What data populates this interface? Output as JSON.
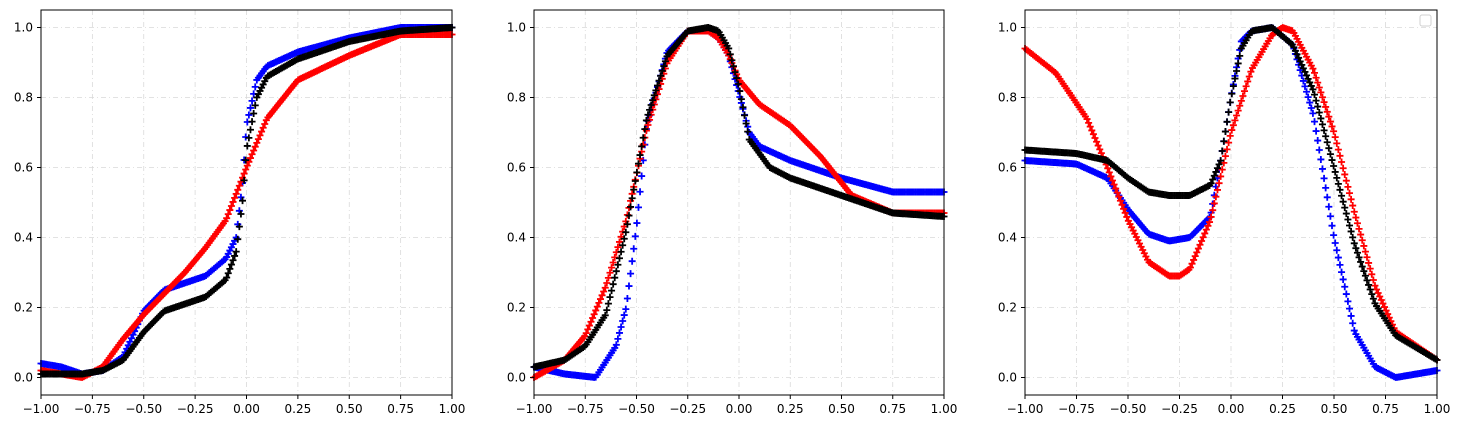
{
  "chart_data": [
    {
      "type": "scatter",
      "xlim": [
        -1.0,
        1.0
      ],
      "ylim": [
        -0.05,
        1.05
      ],
      "xticks": [
        -1.0,
        -0.75,
        -0.5,
        -0.25,
        0.0,
        0.25,
        0.5,
        0.75,
        1.0
      ],
      "xtick_labels": [
        "−1.00",
        "−0.75",
        "−0.50",
        "−0.25",
        "0.00",
        "0.25",
        "0.50",
        "0.75",
        "1.00"
      ],
      "yticks": [
        0.0,
        0.2,
        0.4,
        0.6,
        0.8,
        1.0
      ],
      "ytick_labels": [
        "0.0",
        "0.2",
        "0.4",
        "0.6",
        "0.8",
        "1.0"
      ],
      "grid": true,
      "legend": false,
      "marker": "+",
      "series": [
        {
          "color": "#0000ff",
          "x": [
            -1.0,
            -0.9,
            -0.8,
            -0.7,
            -0.6,
            -0.5,
            -0.4,
            -0.3,
            -0.2,
            -0.1,
            -0.05,
            -0.02,
            0.0,
            0.05,
            0.1,
            0.25,
            0.5,
            0.75,
            1.0
          ],
          "y": [
            0.04,
            0.03,
            0.01,
            0.02,
            0.06,
            0.19,
            0.25,
            0.27,
            0.29,
            0.34,
            0.4,
            0.55,
            0.72,
            0.85,
            0.89,
            0.93,
            0.97,
            1.0,
            1.0
          ]
        },
        {
          "color": "#ff0000",
          "x": [
            -1.0,
            -0.9,
            -0.8,
            -0.7,
            -0.6,
            -0.5,
            -0.4,
            -0.3,
            -0.2,
            -0.1,
            0.0,
            0.1,
            0.25,
            0.5,
            0.75,
            1.0
          ],
          "y": [
            0.02,
            0.01,
            0.0,
            0.03,
            0.11,
            0.18,
            0.24,
            0.3,
            0.37,
            0.45,
            0.6,
            0.74,
            0.85,
            0.92,
            0.98,
            0.98
          ]
        },
        {
          "color": "#000000",
          "x": [
            -1.0,
            -0.9,
            -0.8,
            -0.7,
            -0.6,
            -0.5,
            -0.4,
            -0.3,
            -0.2,
            -0.1,
            -0.05,
            -0.02,
            0.0,
            0.05,
            0.1,
            0.25,
            0.5,
            0.75,
            1.0
          ],
          "y": [
            0.01,
            0.01,
            0.01,
            0.02,
            0.05,
            0.13,
            0.19,
            0.21,
            0.23,
            0.28,
            0.36,
            0.5,
            0.65,
            0.8,
            0.86,
            0.91,
            0.96,
            0.99,
            1.0
          ]
        }
      ]
    },
    {
      "type": "scatter",
      "xlim": [
        -1.0,
        1.0
      ],
      "ylim": [
        -0.05,
        1.05
      ],
      "xticks": [
        -1.0,
        -0.75,
        -0.5,
        -0.25,
        0.0,
        0.25,
        0.5,
        0.75,
        1.0
      ],
      "xtick_labels": [
        "−1.00",
        "−0.75",
        "−0.50",
        "−0.25",
        "0.00",
        "0.25",
        "0.50",
        "0.75",
        "1.00"
      ],
      "yticks": [
        0.0,
        0.2,
        0.4,
        0.6,
        0.8,
        1.0
      ],
      "ytick_labels": [
        "0.0",
        "0.2",
        "0.4",
        "0.6",
        "0.8",
        "1.0"
      ],
      "grid": true,
      "legend": false,
      "marker": "+",
      "series": [
        {
          "color": "#0000ff",
          "x": [
            -1.0,
            -0.85,
            -0.7,
            -0.6,
            -0.55,
            -0.5,
            -0.45,
            -0.35,
            -0.25,
            -0.15,
            -0.1,
            -0.05,
            0.0,
            0.05,
            0.1,
            0.25,
            0.5,
            0.75,
            1.0
          ],
          "y": [
            0.03,
            0.01,
            0.0,
            0.09,
            0.2,
            0.43,
            0.72,
            0.93,
            0.99,
            0.99,
            0.97,
            0.92,
            0.81,
            0.7,
            0.66,
            0.62,
            0.57,
            0.53,
            0.53
          ]
        },
        {
          "color": "#ff0000",
          "x": [
            -1.0,
            -0.85,
            -0.75,
            -0.65,
            -0.55,
            -0.45,
            -0.35,
            -0.25,
            -0.15,
            -0.1,
            -0.05,
            0.0,
            0.1,
            0.25,
            0.4,
            0.55,
            0.75,
            1.0
          ],
          "y": [
            0.0,
            0.05,
            0.12,
            0.26,
            0.45,
            0.71,
            0.9,
            0.99,
            0.99,
            0.97,
            0.92,
            0.85,
            0.78,
            0.72,
            0.63,
            0.52,
            0.47,
            0.47
          ]
        },
        {
          "color": "#000000",
          "x": [
            -1.0,
            -0.85,
            -0.75,
            -0.65,
            -0.55,
            -0.45,
            -0.35,
            -0.25,
            -0.15,
            -0.1,
            -0.05,
            0.0,
            0.05,
            0.15,
            0.25,
            0.5,
            0.75,
            1.0
          ],
          "y": [
            0.03,
            0.05,
            0.09,
            0.18,
            0.42,
            0.74,
            0.92,
            0.99,
            1.0,
            0.99,
            0.94,
            0.83,
            0.68,
            0.6,
            0.57,
            0.52,
            0.47,
            0.46
          ]
        }
      ]
    },
    {
      "type": "scatter",
      "xlim": [
        -1.0,
        1.0
      ],
      "ylim": [
        -0.05,
        1.05
      ],
      "xticks": [
        -1.0,
        -0.75,
        -0.5,
        -0.25,
        0.0,
        0.25,
        0.5,
        0.75,
        1.0
      ],
      "xtick_labels": [
        "−1.00",
        "−0.75",
        "−0.50",
        "−0.25",
        "0.00",
        "0.25",
        "0.50",
        "0.75",
        "1.00"
      ],
      "yticks": [
        0.0,
        0.2,
        0.4,
        0.6,
        0.8,
        1.0
      ],
      "ytick_labels": [
        "0.0",
        "0.2",
        "0.4",
        "0.6",
        "0.8",
        "1.0"
      ],
      "grid": true,
      "legend": true,
      "legend_location": "top-right",
      "marker": "+",
      "series": [
        {
          "color": "#0000ff",
          "x": [
            -1.0,
            -0.75,
            -0.6,
            -0.5,
            -0.4,
            -0.3,
            -0.2,
            -0.1,
            -0.05,
            0.0,
            0.05,
            0.1,
            0.2,
            0.3,
            0.4,
            0.5,
            0.6,
            0.7,
            0.8,
            1.0
          ],
          "y": [
            0.62,
            0.61,
            0.57,
            0.48,
            0.41,
            0.39,
            0.4,
            0.46,
            0.62,
            0.8,
            0.96,
            0.99,
            1.0,
            0.95,
            0.75,
            0.4,
            0.13,
            0.03,
            0.0,
            0.02
          ]
        },
        {
          "color": "#ff0000",
          "x": [
            -1.0,
            -0.85,
            -0.7,
            -0.6,
            -0.5,
            -0.4,
            -0.3,
            -0.25,
            -0.2,
            -0.1,
            0.0,
            0.1,
            0.2,
            0.25,
            0.3,
            0.4,
            0.5,
            0.6,
            0.7,
            0.8,
            1.0
          ],
          "y": [
            0.94,
            0.87,
            0.74,
            0.6,
            0.45,
            0.33,
            0.29,
            0.29,
            0.31,
            0.45,
            0.7,
            0.88,
            0.98,
            1.0,
            0.99,
            0.88,
            0.7,
            0.47,
            0.26,
            0.13,
            0.05
          ]
        },
        {
          "color": "#000000",
          "x": [
            -1.0,
            -0.75,
            -0.6,
            -0.5,
            -0.4,
            -0.3,
            -0.2,
            -0.1,
            -0.05,
            0.0,
            0.05,
            0.1,
            0.2,
            0.3,
            0.4,
            0.5,
            0.6,
            0.7,
            0.8,
            1.0
          ],
          "y": [
            0.65,
            0.64,
            0.62,
            0.57,
            0.53,
            0.52,
            0.52,
            0.55,
            0.62,
            0.8,
            0.94,
            0.99,
            1.0,
            0.95,
            0.82,
            0.6,
            0.38,
            0.21,
            0.12,
            0.05
          ]
        }
      ]
    }
  ]
}
